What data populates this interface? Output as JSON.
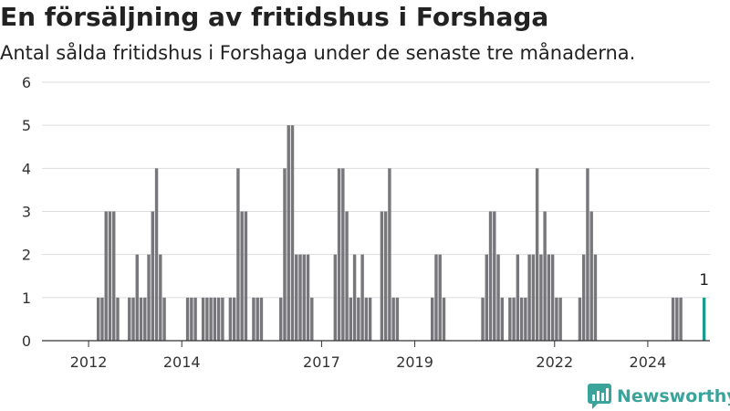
{
  "title": "En försäljning av fritidshus i Forshaga",
  "subtitle": "Antal sålda fritidshus i Forshaga under de senaste tre månaderna.",
  "brand": "Newsworthy",
  "colors": {
    "bar": "#76767b",
    "highlight": "#1d9a8e",
    "brand": "#3aa39a",
    "grid": "#dddddd"
  },
  "chart_data": {
    "type": "bar",
    "x_start": "2011-01",
    "x_end": "2025-05",
    "ylim": [
      0,
      6
    ],
    "yticks": [
      0,
      1,
      2,
      3,
      4,
      5,
      6
    ],
    "xtick_labels": [
      "2012",
      "2014",
      "2017",
      "2019",
      "2022",
      "2024"
    ],
    "grid": true,
    "data_label": "1",
    "series": [
      {
        "values": [
          {
            "x": "2012-03",
            "y": 1
          },
          {
            "x": "2012-04",
            "y": 1
          },
          {
            "x": "2012-05",
            "y": 3
          },
          {
            "x": "2012-06",
            "y": 3
          },
          {
            "x": "2012-07",
            "y": 3
          },
          {
            "x": "2012-08",
            "y": 1
          },
          {
            "x": "2012-11",
            "y": 1
          },
          {
            "x": "2012-12",
            "y": 1
          },
          {
            "x": "2013-01",
            "y": 2
          },
          {
            "x": "2013-02",
            "y": 1
          },
          {
            "x": "2013-03",
            "y": 1
          },
          {
            "x": "2013-04",
            "y": 2
          },
          {
            "x": "2013-05",
            "y": 3
          },
          {
            "x": "2013-06",
            "y": 4
          },
          {
            "x": "2013-07",
            "y": 2
          },
          {
            "x": "2013-08",
            "y": 1
          },
          {
            "x": "2014-02",
            "y": 1
          },
          {
            "x": "2014-03",
            "y": 1
          },
          {
            "x": "2014-04",
            "y": 1
          },
          {
            "x": "2014-06",
            "y": 1
          },
          {
            "x": "2014-07",
            "y": 1
          },
          {
            "x": "2014-08",
            "y": 1
          },
          {
            "x": "2014-09",
            "y": 1
          },
          {
            "x": "2014-10",
            "y": 1
          },
          {
            "x": "2014-11",
            "y": 1
          },
          {
            "x": "2015-01",
            "y": 1
          },
          {
            "x": "2015-02",
            "y": 1
          },
          {
            "x": "2015-03",
            "y": 4
          },
          {
            "x": "2015-04",
            "y": 3
          },
          {
            "x": "2015-05",
            "y": 3
          },
          {
            "x": "2015-07",
            "y": 1
          },
          {
            "x": "2015-08",
            "y": 1
          },
          {
            "x": "2015-09",
            "y": 1
          },
          {
            "x": "2016-02",
            "y": 1
          },
          {
            "x": "2016-03",
            "y": 4
          },
          {
            "x": "2016-04",
            "y": 5
          },
          {
            "x": "2016-05",
            "y": 5
          },
          {
            "x": "2016-06",
            "y": 2
          },
          {
            "x": "2016-07",
            "y": 2
          },
          {
            "x": "2016-08",
            "y": 2
          },
          {
            "x": "2016-09",
            "y": 2
          },
          {
            "x": "2016-10",
            "y": 1
          },
          {
            "x": "2017-04",
            "y": 2
          },
          {
            "x": "2017-05",
            "y": 4
          },
          {
            "x": "2017-06",
            "y": 4
          },
          {
            "x": "2017-07",
            "y": 3
          },
          {
            "x": "2017-08",
            "y": 1
          },
          {
            "x": "2017-09",
            "y": 2
          },
          {
            "x": "2017-10",
            "y": 1
          },
          {
            "x": "2017-11",
            "y": 2
          },
          {
            "x": "2017-12",
            "y": 1
          },
          {
            "x": "2018-01",
            "y": 1
          },
          {
            "x": "2018-04",
            "y": 3
          },
          {
            "x": "2018-05",
            "y": 3
          },
          {
            "x": "2018-06",
            "y": 4
          },
          {
            "x": "2018-07",
            "y": 1
          },
          {
            "x": "2018-08",
            "y": 1
          },
          {
            "x": "2019-05",
            "y": 1
          },
          {
            "x": "2019-06",
            "y": 2
          },
          {
            "x": "2019-07",
            "y": 2
          },
          {
            "x": "2019-08",
            "y": 1
          },
          {
            "x": "2020-06",
            "y": 1
          },
          {
            "x": "2020-07",
            "y": 2
          },
          {
            "x": "2020-08",
            "y": 3
          },
          {
            "x": "2020-09",
            "y": 3
          },
          {
            "x": "2020-10",
            "y": 2
          },
          {
            "x": "2020-11",
            "y": 1
          },
          {
            "x": "2021-01",
            "y": 1
          },
          {
            "x": "2021-02",
            "y": 1
          },
          {
            "x": "2021-03",
            "y": 2
          },
          {
            "x": "2021-04",
            "y": 1
          },
          {
            "x": "2021-05",
            "y": 1
          },
          {
            "x": "2021-06",
            "y": 2
          },
          {
            "x": "2021-07",
            "y": 2
          },
          {
            "x": "2021-08",
            "y": 4
          },
          {
            "x": "2021-09",
            "y": 2
          },
          {
            "x": "2021-10",
            "y": 3
          },
          {
            "x": "2021-11",
            "y": 2
          },
          {
            "x": "2021-12",
            "y": 2
          },
          {
            "x": "2022-01",
            "y": 1
          },
          {
            "x": "2022-02",
            "y": 1
          },
          {
            "x": "2022-07",
            "y": 1
          },
          {
            "x": "2022-08",
            "y": 2
          },
          {
            "x": "2022-09",
            "y": 4
          },
          {
            "x": "2022-10",
            "y": 3
          },
          {
            "x": "2022-11",
            "y": 2
          },
          {
            "x": "2024-07",
            "y": 1
          },
          {
            "x": "2024-08",
            "y": 1
          },
          {
            "x": "2024-09",
            "y": 1
          },
          {
            "x": "2025-03",
            "y": 1,
            "highlight": true
          }
        ]
      }
    ]
  }
}
